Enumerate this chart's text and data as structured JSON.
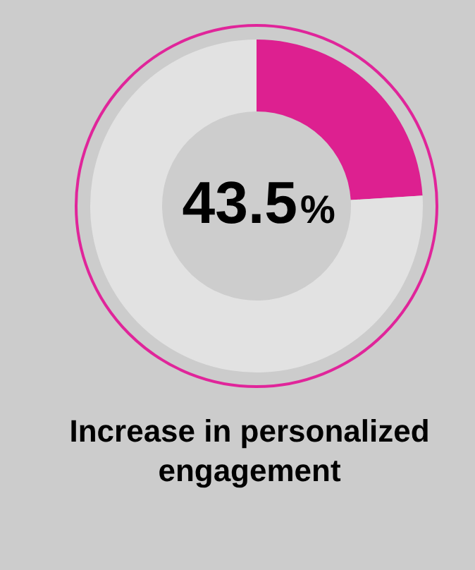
{
  "chart_data": {
    "type": "donut",
    "title": "Increase in personalized engagement",
    "categories": [
      null,
      null
    ],
    "values": [
      24,
      76
    ],
    "colors": [
      "#dd2090",
      "#e2e2e2"
    ],
    "annotations": [
      "43.5%"
    ]
  }
}
